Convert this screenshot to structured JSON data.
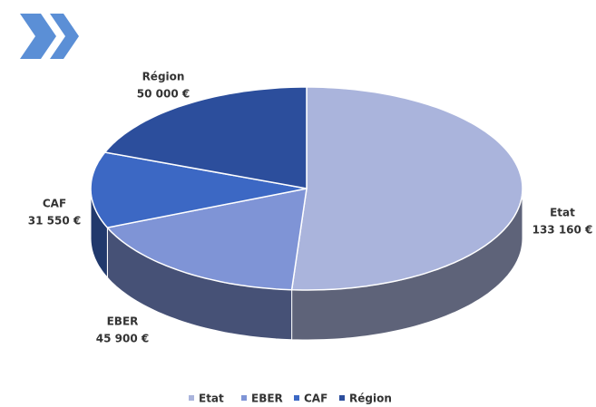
{
  "chart_data": {
    "type": "pie3d",
    "categories": [
      "Etat",
      "EBER",
      "CAF",
      "Région"
    ],
    "values": [
      133160,
      45900,
      31550,
      50000
    ],
    "value_labels": [
      "133 160 €",
      "45 900 €",
      "31 550 €",
      "50 000 €"
    ],
    "colors": [
      "#aab4dc",
      "#7f94d6",
      "#3c68c4",
      "#2c4e9c"
    ],
    "legend": "bottom"
  }
}
